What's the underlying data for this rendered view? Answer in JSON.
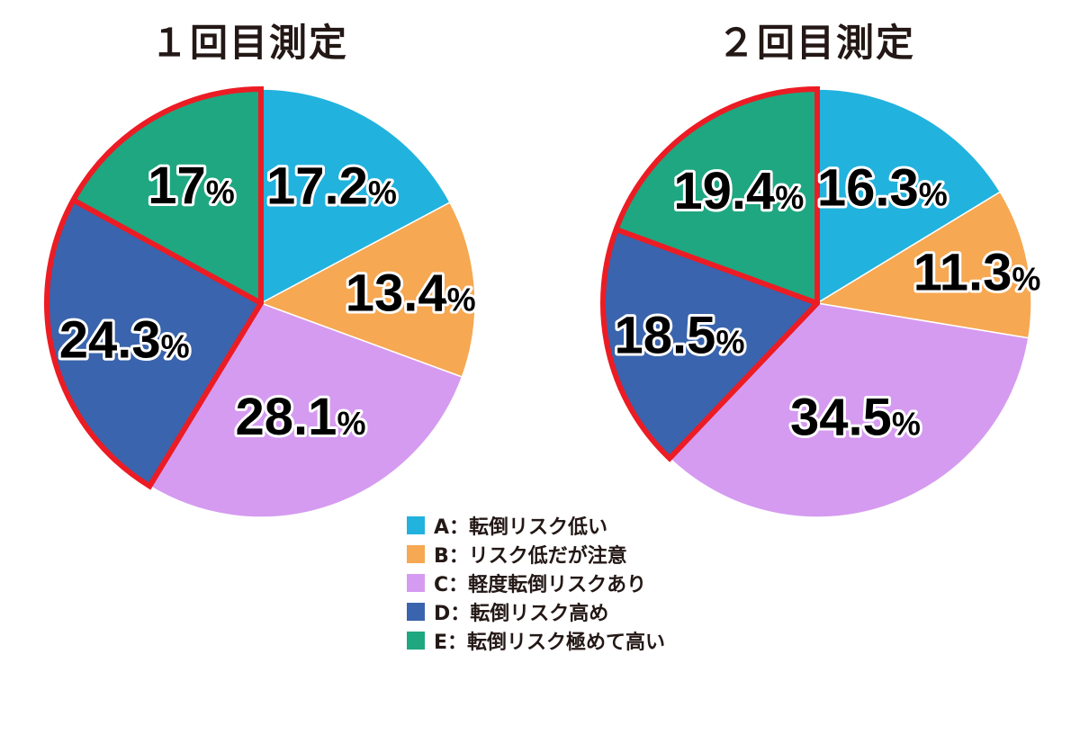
{
  "colors": {
    "A": "#22b2de",
    "B": "#f6a852",
    "C": "#d59bf0",
    "D": "#3a64ad",
    "E": "#1fa781",
    "highlight": "#ec1c24"
  },
  "legend": [
    {
      "key": "A",
      "label": "A：転倒リスク低い"
    },
    {
      "key": "B",
      "label": "B：リスク低だが注意"
    },
    {
      "key": "C",
      "label": "C：軽度転倒リスクあり"
    },
    {
      "key": "D",
      "label": "D：転倒リスク高め"
    },
    {
      "key": "E",
      "label": "E：転倒リスク極めて高い"
    }
  ],
  "chart_data": [
    {
      "type": "pie",
      "title": "１回目測定",
      "categories": [
        "A",
        "B",
        "C",
        "D",
        "E"
      ],
      "values": [
        17.2,
        13.4,
        28.1,
        24.3,
        17
      ],
      "value_labels": [
        "17.2",
        "13.4",
        "28.1",
        "24.3",
        "17"
      ],
      "unit": "%",
      "highlighted": [
        "D",
        "E"
      ],
      "start": "12 o'clock",
      "direction": "clockwise"
    },
    {
      "type": "pie",
      "title": "２回目測定",
      "categories": [
        "A",
        "B",
        "C",
        "D",
        "E"
      ],
      "values": [
        16.3,
        11.3,
        34.5,
        18.5,
        19.4
      ],
      "value_labels": [
        "16.3",
        "11.3",
        "34.5",
        "18.5",
        "19.4"
      ],
      "unit": "%",
      "highlighted": [
        "D",
        "E"
      ],
      "start": "12 o'clock",
      "direction": "clockwise"
    }
  ]
}
